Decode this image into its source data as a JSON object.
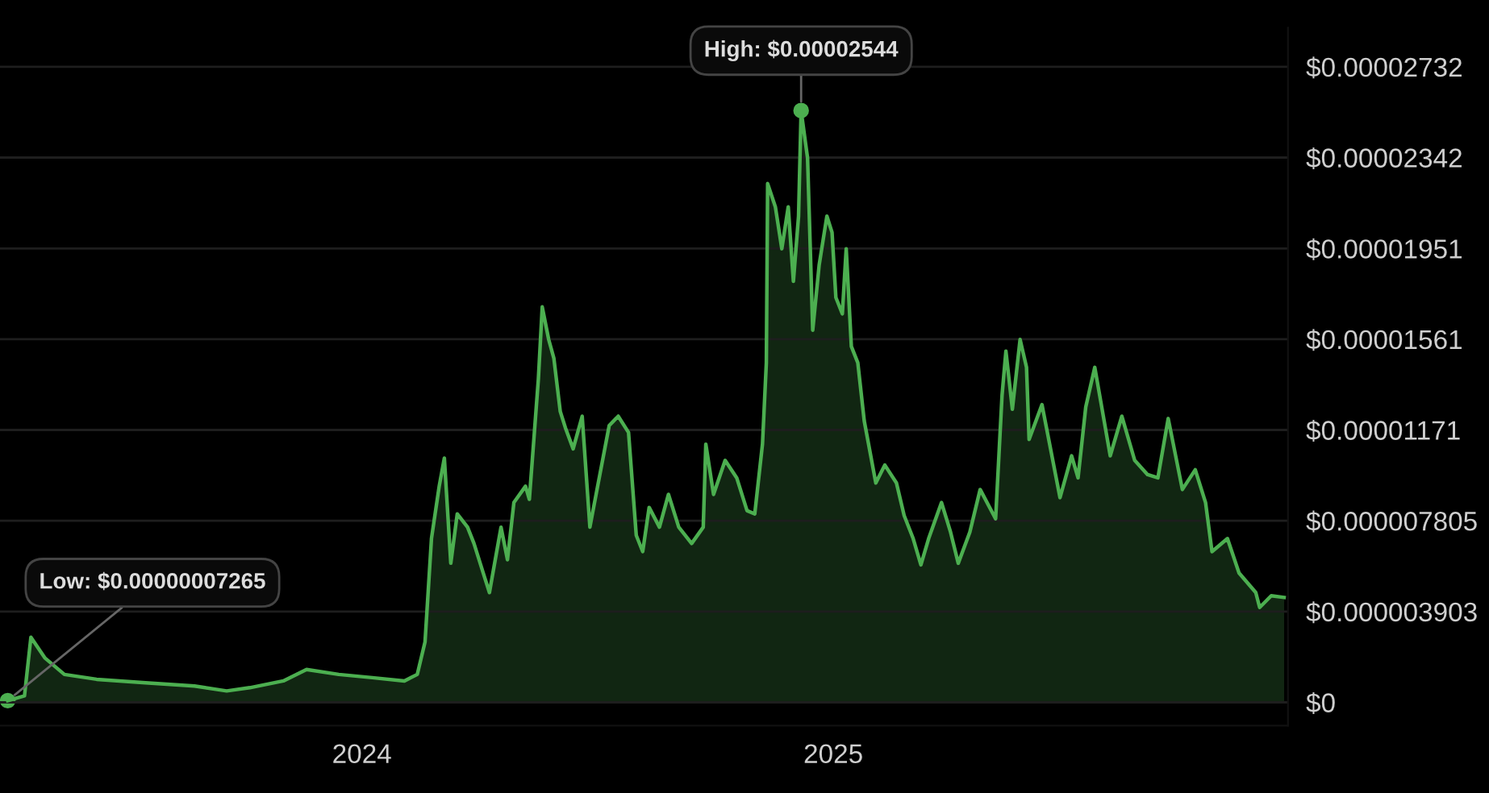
{
  "chart_data": {
    "type": "area",
    "x": [
      "2023-04-01",
      "2023-04-14",
      "2023-04-19",
      "2023-04-30",
      "2023-05-15",
      "2023-06-09",
      "2023-07-17",
      "2023-08-24",
      "2023-09-18",
      "2023-10-06",
      "2023-11-01",
      "2023-11-19",
      "2023-12-14",
      "2024-01-09",
      "2024-02-03",
      "2024-02-13",
      "2024-02-19",
      "2024-02-24",
      "2024-03-01",
      "2024-03-05",
      "2024-03-10",
      "2024-03-15",
      "2024-03-23",
      "2024-03-28",
      "2024-04-05",
      "2024-04-09",
      "2024-04-18",
      "2024-04-23",
      "2024-04-28",
      "2024-05-07",
      "2024-05-10",
      "2024-05-17",
      "2024-05-20",
      "2024-05-25",
      "2024-05-29",
      "2024-06-03",
      "2024-06-07",
      "2024-06-13",
      "2024-06-20",
      "2024-06-26",
      "2024-07-02",
      "2024-07-11",
      "2024-07-18",
      "2024-07-26",
      "2024-08-01",
      "2024-08-06",
      "2024-08-11",
      "2024-08-19",
      "2024-08-26",
      "2024-09-03",
      "2024-09-13",
      "2024-09-22",
      "2024-09-24",
      "2024-09-30",
      "2024-10-09",
      "2024-10-18",
      "2024-10-26",
      "2024-11-01",
      "2024-11-07",
      "2024-11-10",
      "2024-11-11",
      "2024-11-17",
      "2024-11-22",
      "2024-11-27",
      "2024-12-01",
      "2024-12-05",
      "2024-12-07",
      "2024-12-12",
      "2024-12-16",
      "2024-12-21",
      "2024-12-27",
      "2024-12-31",
      "2025-01-03",
      "2025-01-08",
      "2025-01-11",
      "2025-01-15",
      "2025-01-20",
      "2025-01-25",
      "2025-02-03",
      "2025-02-10",
      "2025-02-19",
      "2025-02-25",
      "2025-03-04",
      "2025-03-10",
      "2025-03-16",
      "2025-03-26",
      "2025-04-02",
      "2025-04-08",
      "2025-04-17",
      "2025-04-25",
      "2025-05-07",
      "2025-05-12",
      "2025-05-15",
      "2025-05-20",
      "2025-05-26",
      "2025-05-31",
      "2025-06-02",
      "2025-06-12",
      "2025-06-26",
      "2025-07-05",
      "2025-07-10",
      "2025-07-16",
      "2025-07-23",
      "2025-08-04",
      "2025-08-13",
      "2025-08-23",
      "2025-09-02",
      "2025-09-10",
      "2025-09-18",
      "2025-09-29",
      "2025-10-09",
      "2025-10-17",
      "2025-10-22",
      "2025-11-03",
      "2025-11-12",
      "2025-11-25",
      "2025-11-28",
      "2025-12-07",
      "2025-12-17"
    ],
    "series": [
      {
        "color": "#4caf50",
        "values": [
          7.265e-08,
          2.8e-07,
          2.8e-06,
          1.9e-06,
          1.2e-06,
          9.9e-07,
          8.4e-07,
          7e-07,
          4.9e-07,
          6.3e-07,
          9.2e-07,
          1.41e-06,
          1.2e-06,
          1.06e-06,
          9.2e-07,
          1.2e-06,
          2.6e-06,
          7.04e-06,
          9.29e-06,
          1.05e-05,
          5.98e-06,
          8.1e-06,
          7.53e-06,
          6.83e-06,
          5.42e-06,
          4.72e-06,
          7.53e-06,
          6.13e-06,
          8.59e-06,
          9.29e-06,
          8.73e-06,
          1.39e-05,
          1.7e-05,
          1.56e-05,
          1.48e-05,
          1.25e-05,
          1.18e-05,
          1.09e-05,
          1.23e-05,
          7.53e-06,
          9.29e-06,
          1.19e-05,
          1.23e-05,
          1.16e-05,
          7.18e-06,
          6.48e-06,
          8.38e-06,
          7.53e-06,
          8.94e-06,
          7.53e-06,
          6.83e-06,
          7.53e-06,
          1.11e-05,
          8.94e-06,
          1.04e-05,
          9.65e-06,
          8.24e-06,
          8.1e-06,
          1.11e-05,
          1.46e-05,
          2.23e-05,
          2.13e-05,
          1.95e-05,
          2.13e-05,
          1.81e-05,
          2.09e-05,
          2.544e-05,
          2.34e-05,
          1.6e-05,
          1.88e-05,
          2.09e-05,
          2.02e-05,
          1.74e-05,
          1.67e-05,
          1.95e-05,
          1.53e-05,
          1.46e-05,
          1.21e-05,
          9.43e-06,
          1.02e-05,
          9.43e-06,
          8.03e-06,
          7.04e-06,
          5.91e-06,
          7.04e-06,
          8.59e-06,
          7.32e-06,
          5.98e-06,
          7.32e-06,
          9.15e-06,
          7.89e-06,
          1.32e-05,
          1.51e-05,
          1.26e-05,
          1.56e-05,
          1.44e-05,
          1.13e-05,
          1.28e-05,
          8.8e-06,
          1.06e-05,
          9.65e-06,
          1.27e-05,
          1.44e-05,
          1.06e-05,
          1.23e-05,
          1.04e-05,
          9.79e-06,
          9.65e-06,
          1.22e-05,
          9.15e-06,
          1e-05,
          8.59e-06,
          6.48e-06,
          7.04e-06,
          5.56e-06,
          4.72e-06,
          4.08e-06,
          4.58e-06,
          4.51e-06
        ]
      }
    ],
    "xlim": [
      "2023-03-26",
      "2025-12-20"
    ],
    "xticks": [
      {
        "value": "2024-01-01",
        "label": "2024"
      },
      {
        "value": "2025-01-01",
        "label": "2025"
      }
    ],
    "ylim": [
      -1e-06,
      2.9e-05
    ],
    "yticks": [
      {
        "value": 0,
        "label": "$0"
      },
      {
        "value": 3.903e-06,
        "label": "$0.000003903"
      },
      {
        "value": 7.805e-06,
        "label": "$0.000007805"
      },
      {
        "value": 1.171e-05,
        "label": "$0.00001171"
      },
      {
        "value": 1.561e-05,
        "label": "$0.00001561"
      },
      {
        "value": 1.951e-05,
        "label": "$0.00001951"
      },
      {
        "value": 2.342e-05,
        "label": "$0.00002342"
      },
      {
        "value": 2.732e-05,
        "label": "$0.00002732"
      }
    ],
    "grid": "y",
    "annotations": [
      {
        "text": "High: $0.00002544",
        "x": "2024-12-07",
        "y": 2.544e-05
      },
      {
        "text": "Low: $0.00000007265",
        "x": "2023-04-01",
        "y": 7.265e-08
      }
    ]
  }
}
